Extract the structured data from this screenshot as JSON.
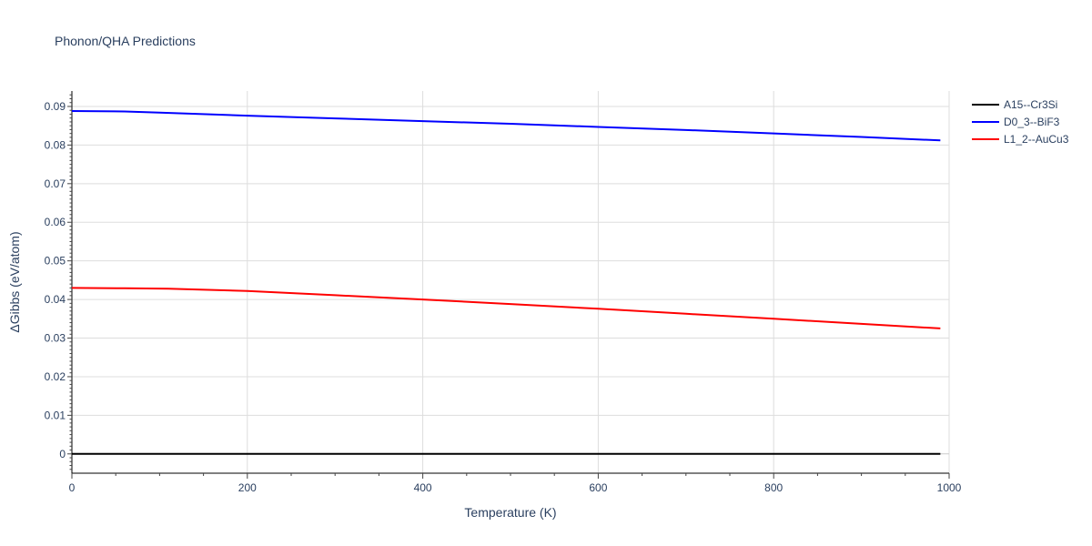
{
  "chart_data": {
    "type": "line",
    "title": "Phonon/QHA Predictions",
    "xlabel": "Temperature (K)",
    "ylabel": "ΔGibbs (eV/atom)",
    "xlim": [
      0,
      1000
    ],
    "ylim": [
      -0.005,
      0.094
    ],
    "x_ticks": [
      0,
      200,
      400,
      600,
      800,
      1000
    ],
    "x_tick_labels": [
      "0",
      "200",
      "400",
      "600",
      "800",
      "1000"
    ],
    "y_ticks": [
      0,
      0.01,
      0.02,
      0.03,
      0.04,
      0.05,
      0.06,
      0.07,
      0.08,
      0.09
    ],
    "y_tick_labels": [
      "0",
      "0.01",
      "0.02",
      "0.03",
      "0.04",
      "0.05",
      "0.06",
      "0.07",
      "0.08",
      "0.09"
    ],
    "grid": true,
    "legend_position": "top-right",
    "series": [
      {
        "name": "A15--Cr3Si",
        "color": "#000000",
        "x": [
          0,
          990
        ],
        "y": [
          0,
          0
        ]
      },
      {
        "name": "D0_3--BiF3",
        "color": "#0000ff",
        "x": [
          0,
          60,
          100,
          200,
          300,
          400,
          500,
          600,
          700,
          800,
          900,
          990
        ],
        "y": [
          0.0888,
          0.0887,
          0.0884,
          0.0876,
          0.0869,
          0.0862,
          0.0855,
          0.0847,
          0.0839,
          0.083,
          0.0821,
          0.0812
        ]
      },
      {
        "name": "L1_2--AuCu3",
        "color": "#ff0000",
        "x": [
          0,
          60,
          110,
          200,
          300,
          400,
          500,
          600,
          700,
          800,
          900,
          990
        ],
        "y": [
          0.043,
          0.0429,
          0.0428,
          0.0422,
          0.0411,
          0.04,
          0.0388,
          0.0376,
          0.0363,
          0.035,
          0.0337,
          0.0325
        ]
      }
    ]
  }
}
